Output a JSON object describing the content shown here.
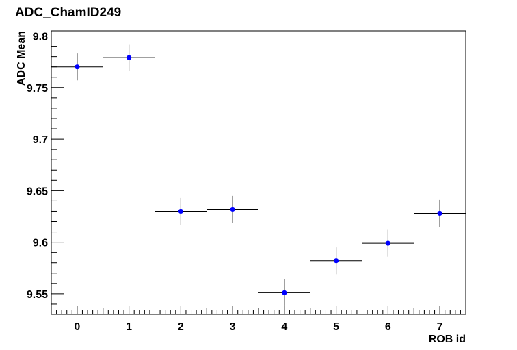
{
  "chart_data": {
    "type": "scatter",
    "title": "ADC_ChamID249",
    "xlabel": "ROB id",
    "ylabel": "ADC Mean",
    "xlim": [
      -0.5,
      7.5
    ],
    "ylim": [
      9.53,
      9.805
    ],
    "x_ticks": [
      0,
      1,
      2,
      3,
      4,
      5,
      6,
      7
    ],
    "x_tick_labels": [
      "0",
      "1",
      "2",
      "3",
      "4",
      "5",
      "6",
      "7"
    ],
    "y_ticks": [
      9.55,
      9.6,
      9.65,
      9.7,
      9.75,
      9.8
    ],
    "y_tick_labels": [
      "9.55",
      "9.6",
      "9.65",
      "9.7",
      "9.75",
      "9.8"
    ],
    "grid": false,
    "marker_color": "#0000ff",
    "errorbar_color": "#000000",
    "points": [
      {
        "x": 0,
        "y": 9.77,
        "xerr": 0.5,
        "yerr": 0.013
      },
      {
        "x": 1,
        "y": 9.779,
        "xerr": 0.5,
        "yerr": 0.013
      },
      {
        "x": 2,
        "y": 9.63,
        "xerr": 0.5,
        "yerr": 0.013
      },
      {
        "x": 3,
        "y": 9.632,
        "xerr": 0.5,
        "yerr": 0.013
      },
      {
        "x": 4,
        "y": 9.551,
        "xerr": 0.5,
        "yerr": 0.013
      },
      {
        "x": 5,
        "y": 9.582,
        "xerr": 0.5,
        "yerr": 0.013
      },
      {
        "x": 6,
        "y": 9.599,
        "xerr": 0.5,
        "yerr": 0.013
      },
      {
        "x": 7,
        "y": 9.628,
        "xerr": 0.5,
        "yerr": 0.013
      }
    ]
  }
}
